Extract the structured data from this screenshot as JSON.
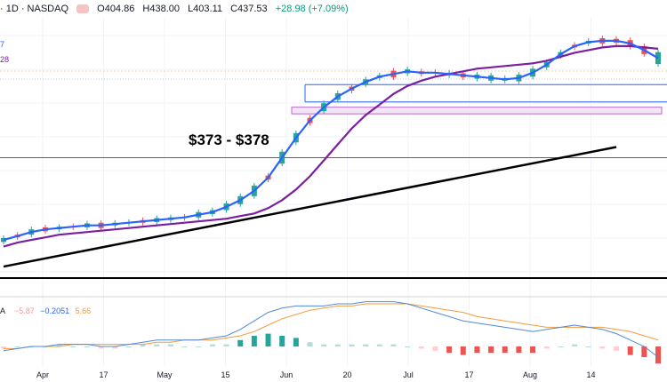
{
  "header": {
    "symbol_line": "· 1D · NASDAQ",
    "open": "O404.86",
    "high": "H438.00",
    "low": "L403.11",
    "close": "C437.53",
    "change": "+28.98 (+7.09%)"
  },
  "side_labels": {
    "ma1": "7",
    "ma2": "28",
    "macd": "A"
  },
  "macd_header": {
    "v1": "−5.87",
    "v2": "−0.2051",
    "v3": "5.66"
  },
  "colors": {
    "up": "#26a69a",
    "down": "#ef5350",
    "ma_fast": "#2962ff",
    "ma_slow": "#7b1fa2",
    "level": "#2962ff",
    "zone": "#e1bee7",
    "trend": "#000000",
    "macd": "#4f8ad8",
    "signal": "#f29b3c"
  },
  "chart_data": {
    "type": "line",
    "annotation": "$373 - $378",
    "x_tick_labels": [
      "Apr",
      "17",
      "May",
      "15",
      "Jun",
      "20",
      "Jul",
      "17",
      "Aug",
      "14"
    ],
    "price_series": {
      "fast_ma": [
        278,
        281,
        284,
        286,
        287,
        288,
        289,
        289,
        290,
        291,
        292,
        293,
        294,
        295,
        297,
        299,
        303,
        308,
        315,
        325,
        340,
        355,
        368,
        378,
        386,
        392,
        397,
        401,
        403,
        405,
        404,
        404,
        403,
        402,
        401,
        400,
        399,
        400,
        404,
        410,
        418,
        424,
        427,
        428,
        428,
        426,
        421,
        415
      ],
      "slow_ma": [
        273,
        276,
        278,
        280,
        282,
        283,
        284,
        285,
        286,
        287,
        288,
        289,
        290,
        291,
        292,
        293,
        294,
        296,
        298,
        302,
        308,
        316,
        326,
        338,
        350,
        362,
        372,
        380,
        388,
        394,
        398,
        401,
        403,
        405,
        407,
        408,
        409,
        410,
        411,
        413,
        416,
        419,
        421,
        423,
        424,
        424,
        423,
        422
      ]
    },
    "levels": [
      395,
      382,
      340
    ],
    "zone": [
      373,
      378
    ],
    "trendline": [
      [
        0,
        258
      ],
      [
        44,
        348
      ]
    ],
    "macd": {
      "macd_line": [
        -2,
        -1,
        0,
        0,
        1,
        1,
        1,
        0,
        0,
        1,
        2,
        3,
        3,
        3,
        3,
        4,
        5,
        8,
        12,
        16,
        18,
        19,
        19,
        19,
        20,
        20,
        21,
        21,
        21,
        20,
        18,
        16,
        14,
        12,
        11,
        10,
        9,
        8,
        7,
        8,
        9,
        10,
        9,
        8,
        6,
        3,
        0,
        -5
      ],
      "signal_line": [
        -1,
        -1,
        0,
        0,
        0,
        1,
        1,
        1,
        1,
        1,
        1,
        2,
        2,
        3,
        3,
        3,
        4,
        5,
        7,
        10,
        13,
        15,
        17,
        18,
        19,
        19,
        20,
        20,
        20,
        20,
        19,
        18,
        17,
        16,
        14,
        13,
        12,
        11,
        10,
        9,
        9,
        9,
        9,
        9,
        8,
        7,
        5,
        3
      ],
      "histogram": [
        -1,
        0,
        0,
        0,
        1,
        0,
        0,
        -1,
        -1,
        0,
        1,
        1,
        1,
        0,
        0,
        1,
        1,
        3,
        5,
        6,
        5,
        4,
        2,
        1,
        1,
        1,
        1,
        1,
        1,
        0,
        -1,
        -2,
        -3,
        -4,
        -3,
        -3,
        -3,
        -3,
        -3,
        -1,
        0,
        1,
        0,
        -1,
        -2,
        -4,
        -5,
        -8
      ]
    }
  }
}
